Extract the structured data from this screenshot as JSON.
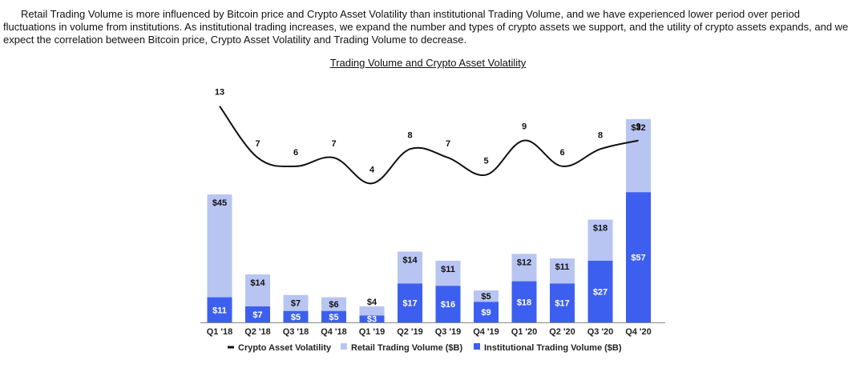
{
  "intro_text": "Retail Trading Volume is more influenced by Bitcoin price and Crypto Asset Volatility than institutional Trading Volume, and we have experienced lower period over period fluctuations in volume from institutions. As institutional trading increases, we expand the number and types of crypto assets we support, and the utility of crypto assets expands, and we expect the correlation between Bitcoin price, Crypto Asset Volatility and Trading Volume to decrease.",
  "chart_data": {
    "type": "bar",
    "title": "Trading Volume and Crypto Asset Volatility",
    "categories": [
      "Q1 '18",
      "Q2 '18",
      "Q3 '18",
      "Q4 '18",
      "Q1 '19",
      "Q2 '19",
      "Q3 '19",
      "Q4 '19",
      "Q1 '20",
      "Q2 '20",
      "Q3 '20",
      "Q4 '20"
    ],
    "stacked": true,
    "series": [
      {
        "name": "Institutional Trading Volume ($B)",
        "kind": "bar",
        "color": "#3d5ff0",
        "values": [
          11,
          7,
          5,
          5,
          3,
          17,
          16,
          9,
          18,
          17,
          27,
          57
        ],
        "labels": [
          "$11",
          "$7",
          "$5",
          "$5",
          "$3",
          "$17",
          "$16",
          "$9",
          "$18",
          "$17",
          "$27",
          "$57"
        ]
      },
      {
        "name": "Retail Trading Volume ($B)",
        "kind": "bar",
        "color": "#b8c5f2",
        "values": [
          45,
          14,
          7,
          6,
          4,
          14,
          11,
          5,
          12,
          11,
          18,
          32
        ],
        "labels": [
          "$45",
          "$14",
          "$7",
          "$6",
          "$4",
          "$14",
          "$11",
          "$5",
          "$12",
          "$11",
          "$18",
          "$32"
        ]
      },
      {
        "name": "Crypto Asset Volatility",
        "kind": "line",
        "color": "#111111",
        "values": [
          13,
          7,
          6,
          7,
          4,
          8,
          7,
          5,
          9,
          6,
          8,
          9
        ],
        "labels": [
          "13",
          "7",
          "6",
          "7",
          "4",
          "8",
          "7",
          "5",
          "9",
          "6",
          "8",
          "9"
        ]
      }
    ],
    "legend": [
      "Crypto Asset Volatility",
      "Retail Trading Volume ($B)",
      "Institutional Trading Volume ($B)"
    ],
    "legend_position": "bottom",
    "ylim_volume": [
      0,
      90
    ],
    "ylim_volatility": [
      3,
      14
    ],
    "grid": false
  }
}
